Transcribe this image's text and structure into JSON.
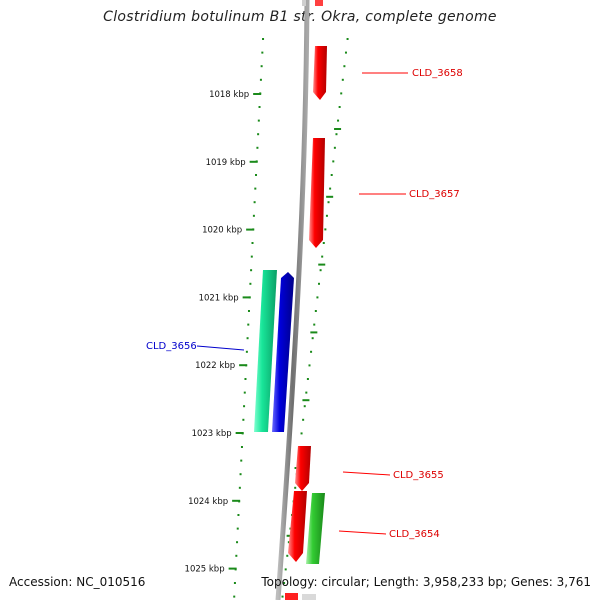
{
  "title": "Clostridium botulinum B1 str. Okra, complete genome",
  "footer": {
    "accession": "Accession: NC_010516",
    "topology": "Topology: circular; Length: 3,958,233 bp; Genes: 3,761"
  },
  "ruler": {
    "ticks": [
      "1018 kbp",
      "1019 kbp",
      "1020 kbp",
      "1021 kbp",
      "1022 kbp",
      "1023 kbp",
      "1024 kbp",
      "1025 kbp"
    ]
  },
  "genes": [
    {
      "label": "CLD_3658",
      "strand": "minus",
      "color": "#ff0000"
    },
    {
      "label": "CLD_3657",
      "strand": "minus",
      "color": "#ff0000"
    },
    {
      "label": "CLD_3656",
      "strand": "plus",
      "color": "#0000dd"
    },
    {
      "label": "CLD_3655",
      "strand": "minus",
      "color": "#ff0000"
    },
    {
      "label": "CLD_3654",
      "strand": "minus",
      "color": "#ff0000"
    }
  ],
  "colors": {
    "cds": "#ff0000",
    "gene_plus": "#0000dd",
    "aux_teal": "#19e69a",
    "aux_green": "#33cc33",
    "ticks": "#1a8a1a",
    "backbone": "#808080"
  }
}
